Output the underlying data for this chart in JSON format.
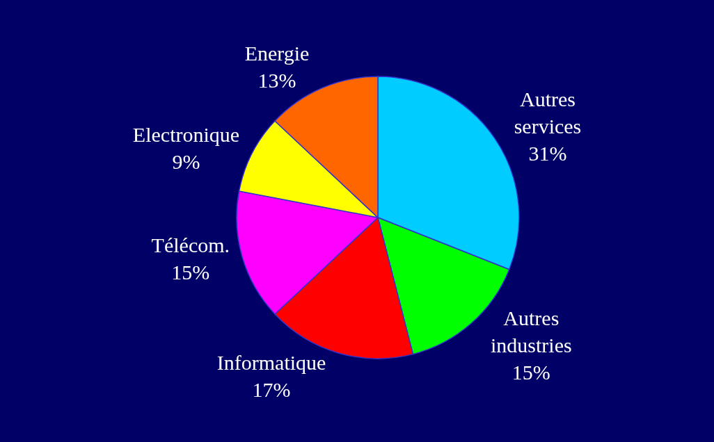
{
  "chart_data": {
    "type": "pie",
    "categories": [
      "Autres services",
      "Autres industries",
      "Informatique",
      "Télécom.",
      "Electronique",
      "Energie"
    ],
    "values": [
      31,
      15,
      17,
      15,
      9,
      13
    ],
    "value_labels": [
      "31%",
      "15%",
      "17%",
      "15%",
      "9%",
      "13%"
    ],
    "colors": [
      "#00ccff",
      "#00ff00",
      "#ff0000",
      "#ff00ff",
      "#ffff00",
      "#ff6600"
    ],
    "legend": false
  }
}
